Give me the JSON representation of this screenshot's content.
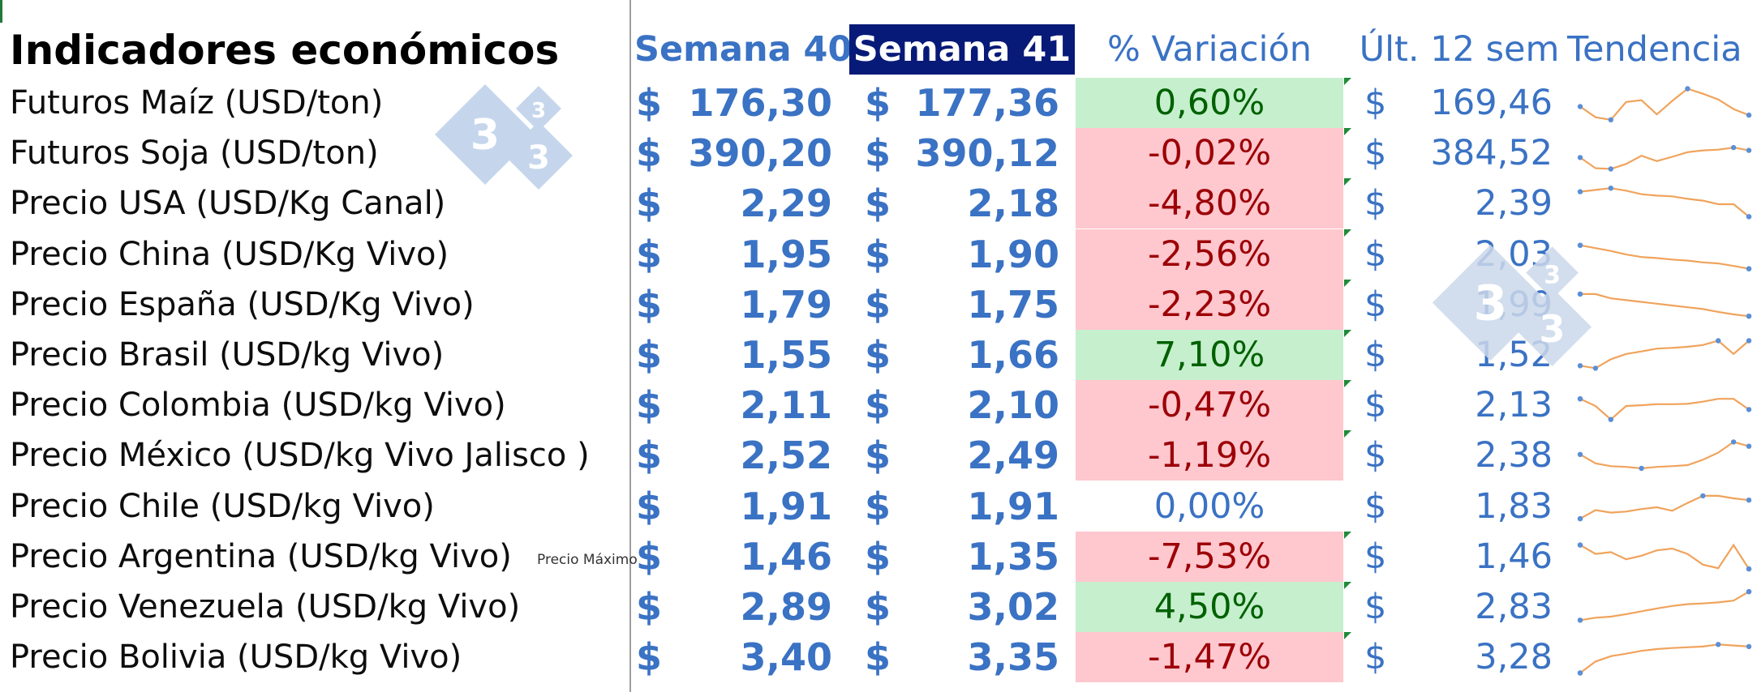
{
  "title": "Indicadores económicos",
  "headers": {
    "week_prev": "Semana 40",
    "week_curr": "Semana 41",
    "variation": "% Variación",
    "last12": "Últ. 12 sem",
    "trend": "Tendencia"
  },
  "currency_symbol": "$",
  "note": "Precio Máximo",
  "logo_digit": "3",
  "colors": {
    "accent_blue": "#3a72c4",
    "header_selected_bg": "#071a78",
    "positive_bg": "#c6efce",
    "positive_text": "#006100",
    "negative_bg": "#ffc7ce",
    "negative_text": "#9c0006",
    "sparkline": "#f0a35c",
    "sparkline_marker": "#5b8fd6"
  },
  "rows": [
    {
      "label": "Futuros Maíz (USD/ton)",
      "w40": "176,30",
      "w41": "177,36",
      "variation": "0,60%",
      "status": "pos",
      "last12": "169,46",
      "trend": [
        0.42,
        0.12,
        0.05,
        0.55,
        0.6,
        0.2,
        0.58,
        0.92,
        0.78,
        0.62,
        0.35,
        0.18
      ]
    },
    {
      "label": "Futuros Soja (USD/ton)",
      "w40": "390,20",
      "w41": "390,12",
      "variation": "-0,02%",
      "status": "neg",
      "last12": "384,52",
      "trend": [
        0.4,
        0.1,
        0.08,
        0.22,
        0.45,
        0.3,
        0.42,
        0.55,
        0.6,
        0.62,
        0.68,
        0.6
      ]
    },
    {
      "label": "Precio USA (USD/Kg Canal)",
      "w40": "2,29",
      "w41": "2,18",
      "variation": "-4,80%",
      "status": "neg",
      "last12": "2,39",
      "trend": [
        0.85,
        0.9,
        0.95,
        0.88,
        0.78,
        0.74,
        0.72,
        0.65,
        0.6,
        0.5,
        0.5,
        0.15
      ]
    },
    {
      "label": "Precio China (USD/Kg Vivo)",
      "w40": "1,95",
      "w41": "1,90",
      "variation": "-2,56%",
      "status": "neg",
      "last12": "2,03",
      "trend": [
        0.78,
        0.7,
        0.62,
        0.52,
        0.45,
        0.42,
        0.38,
        0.35,
        0.3,
        0.27,
        0.2,
        0.12
      ]
    },
    {
      "label": "Precio España (USD/Kg Vivo)",
      "w40": "1,79",
      "w41": "1,75",
      "variation": "-2,23%",
      "status": "neg",
      "last12": "1,99",
      "trend": [
        0.82,
        0.82,
        0.7,
        0.65,
        0.6,
        0.55,
        0.5,
        0.45,
        0.4,
        0.32,
        0.25,
        0.2
      ]
    },
    {
      "label": "Precio  Brasil (USD/kg Vivo)",
      "w40": "1,55",
      "w41": "1,66",
      "variation": "7,10%",
      "status": "pos",
      "last12": "1,52",
      "trend": [
        0.22,
        0.15,
        0.4,
        0.55,
        0.62,
        0.7,
        0.72,
        0.75,
        0.8,
        0.92,
        0.55,
        0.92
      ]
    },
    {
      "label": "Precio Colombia (USD/kg Vivo)",
      "w40": "2,11",
      "w41": "2,10",
      "variation": "-0,47%",
      "status": "neg",
      "last12": "2,13",
      "trend": [
        0.7,
        0.5,
        0.12,
        0.5,
        0.52,
        0.55,
        0.55,
        0.56,
        0.62,
        0.7,
        0.7,
        0.4
      ]
    },
    {
      "label": "Precio México (USD/kg Vivo Jalisco )",
      "w40": "2,52",
      "w41": "2,49",
      "variation": "-1,19%",
      "status": "neg",
      "last12": "2,38",
      "trend": [
        0.55,
        0.3,
        0.22,
        0.2,
        0.16,
        0.2,
        0.22,
        0.25,
        0.4,
        0.6,
        0.9,
        0.78
      ]
    },
    {
      "label": "Precio Chile (USD/kg Vivo)",
      "w40": "1,91",
      "w41": "1,91",
      "variation": "0,00%",
      "status": "zero",
      "last12": "1,83",
      "trend": [
        0.18,
        0.42,
        0.35,
        0.38,
        0.45,
        0.5,
        0.4,
        0.62,
        0.82,
        0.82,
        0.75,
        0.7
      ]
    },
    {
      "label": "Precio Argentina (USD/kg Vivo)",
      "w40": "1,46",
      "w41": "1,35",
      "variation": "-7,53%",
      "status": "neg",
      "last12": "1,46",
      "trend": [
        0.85,
        0.6,
        0.65,
        0.45,
        0.55,
        0.7,
        0.75,
        0.6,
        0.3,
        0.2,
        0.85,
        0.18
      ]
    },
    {
      "label": "Precio Venezuela  (USD/kg Vivo)",
      "w40": "2,89",
      "w41": "3,02",
      "variation": "4,50%",
      "status": "pos",
      "last12": "2,83",
      "trend": [
        0.15,
        0.22,
        0.25,
        0.32,
        0.4,
        0.48,
        0.55,
        0.6,
        0.62,
        0.65,
        0.7,
        0.95
      ]
    },
    {
      "label": "Precio Bolivia  (USD/kg Vivo)",
      "w40": "3,40",
      "w41": "3,35",
      "variation": "-1,47%",
      "status": "neg",
      "last12": "3,28",
      "trend": [
        0.08,
        0.4,
        0.55,
        0.62,
        0.7,
        0.75,
        0.78,
        0.8,
        0.82,
        0.88,
        0.85,
        0.82
      ]
    }
  ]
}
